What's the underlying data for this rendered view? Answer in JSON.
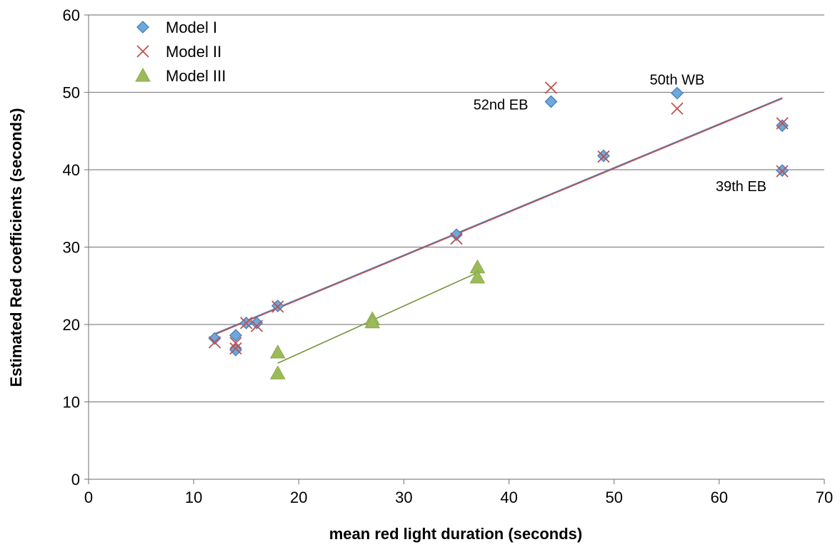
{
  "chart_data": {
    "type": "scatter",
    "title": "",
    "xlabel": "mean red light duration (seconds)",
    "ylabel": "Estimated Red  coefficients (seconds)",
    "xlim": [
      0,
      70
    ],
    "ylim": [
      0,
      60
    ],
    "x_ticks": [
      "0",
      "10",
      "20",
      "30",
      "40",
      "50",
      "60",
      "70"
    ],
    "y_ticks": [
      "0",
      "10",
      "20",
      "30",
      "40",
      "50",
      "60"
    ],
    "grid": "horizontal",
    "legend_position": "top-left",
    "series": [
      {
        "name": "Model I",
        "marker": "diamond",
        "color": "#6FA8DC",
        "stroke": "#4A7EBB",
        "points": [
          [
            12,
            18.2
          ],
          [
            14,
            18.6
          ],
          [
            14,
            16.7
          ],
          [
            15,
            20.2
          ],
          [
            16,
            20.2
          ],
          [
            18,
            22.4
          ],
          [
            35,
            31.6
          ],
          [
            44,
            48.8
          ],
          [
            49,
            41.8
          ],
          [
            56,
            49.9
          ],
          [
            66,
            45.7
          ],
          [
            66,
            39.9
          ]
        ]
      },
      {
        "name": "Model II",
        "marker": "x",
        "color": "#C0504D",
        "points": [
          [
            12,
            17.7
          ],
          [
            14,
            17.6
          ],
          [
            14,
            16.9
          ],
          [
            15,
            20.2
          ],
          [
            16,
            19.8
          ],
          [
            18,
            22.3
          ],
          [
            35,
            31.1
          ],
          [
            44,
            50.6
          ],
          [
            49,
            41.7
          ],
          [
            56,
            47.9
          ],
          [
            66,
            46.0
          ],
          [
            66,
            39.8
          ]
        ]
      },
      {
        "name": "Model III",
        "marker": "triangle",
        "color": "#9BBB59",
        "points": [
          [
            18,
            16.4
          ],
          [
            18,
            13.7
          ],
          [
            27,
            20.7
          ],
          [
            27,
            20.3
          ],
          [
            37,
            27.4
          ],
          [
            37,
            26.1
          ]
        ]
      }
    ],
    "trendlines": [
      {
        "series": "Model I",
        "color": "#4A7EBB",
        "from": [
          12,
          18.8
        ],
        "to": [
          66,
          49.3
        ]
      },
      {
        "series": "Model II",
        "color": "#C0504D",
        "from": [
          12,
          18.7
        ],
        "to": [
          66,
          49.2
        ]
      },
      {
        "series": "Model III",
        "color": "#77933C",
        "from": [
          18,
          15.0
        ],
        "to": [
          37,
          26.7
        ]
      }
    ],
    "annotations": [
      {
        "text": "52nd EB",
        "x": 44,
        "y": 48.8
      },
      {
        "text": "50th WB",
        "x": 56,
        "y": 49.9
      },
      {
        "text": "39th EB",
        "x": 66,
        "y": 39.9
      }
    ]
  }
}
